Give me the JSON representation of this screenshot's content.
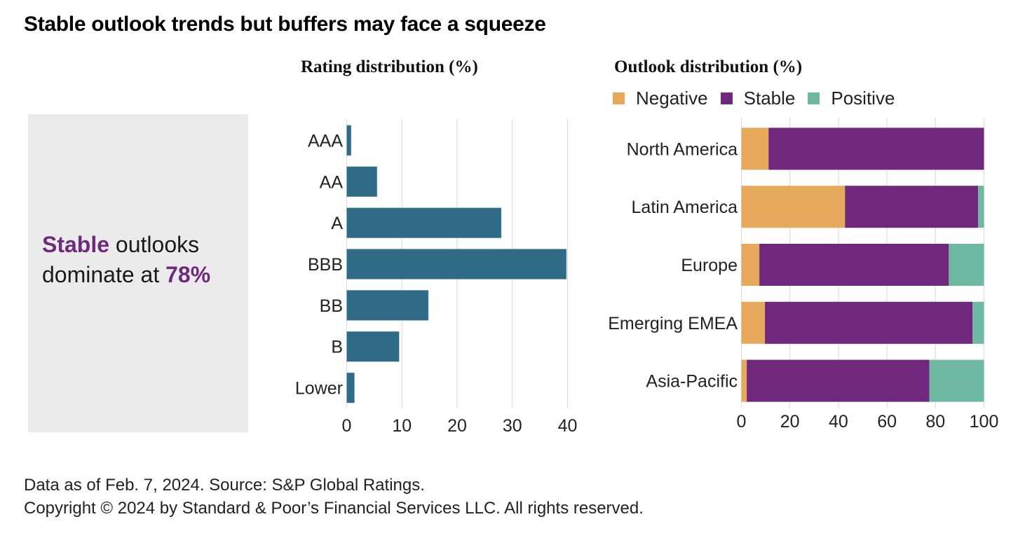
{
  "title": "Stable outlook trends but buffers may face a squeeze",
  "callout": {
    "highlight_word": "Stable",
    "text_part1": " outlooks",
    "text_part2": "dominate at ",
    "highlight_value": "78%"
  },
  "colors": {
    "rating_bar": "#2f6b86",
    "negative": "#e6a85a",
    "stable": "#6f287c",
    "positive": "#6fb9a2",
    "highlight": "#6f2a7c",
    "gridline": "#dddddd"
  },
  "chart_data": [
    {
      "type": "bar",
      "orientation": "horizontal",
      "title": "Rating distribution (%)",
      "categories": [
        "AAA",
        "AA",
        "A",
        "BBB",
        "BB",
        "B",
        "Lower"
      ],
      "values": [
        0.8,
        5.5,
        28.0,
        39.8,
        14.8,
        9.5,
        1.4
      ],
      "xlabel": "",
      "ylabel": "",
      "xlim": [
        0,
        40
      ],
      "xticks": [
        0,
        10,
        20,
        30,
        40
      ],
      "grid": true
    },
    {
      "type": "bar",
      "orientation": "horizontal",
      "stacked": true,
      "title": "Outlook distribution (%)",
      "categories": [
        "North America",
        "Latin America",
        "Europe",
        "Emerging EMEA",
        "Asia-Pacific"
      ],
      "series": [
        {
          "name": "Negative",
          "values": [
            11.2,
            42.7,
            7.4,
            9.7,
            2.2
          ]
        },
        {
          "name": "Stable",
          "values": [
            88.8,
            54.9,
            78.1,
            85.6,
            75.3
          ]
        },
        {
          "name": "Positive",
          "values": [
            0.0,
            2.4,
            14.5,
            4.7,
            22.5
          ]
        }
      ],
      "legend": [
        "Negative",
        "Stable",
        "Positive"
      ],
      "legend_position": "top-left",
      "xlim": [
        0,
        100
      ],
      "xticks": [
        0,
        20,
        40,
        60,
        80,
        100
      ],
      "grid": true
    }
  ],
  "footer": {
    "source": "Data as of Feb. 7, 2024. Source: S&P Global Ratings.",
    "copyright": "Copyright © 2024 by Standard & Poor’s Financial Services LLC. All rights reserved."
  }
}
